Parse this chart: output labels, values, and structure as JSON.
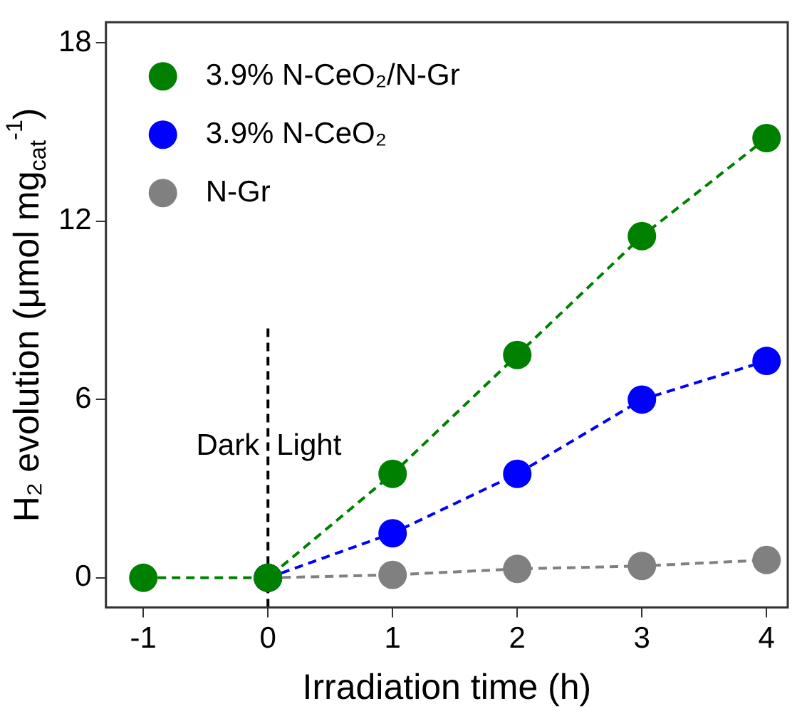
{
  "chart_data": {
    "type": "line",
    "xlabel": "Irradiation time (h)",
    "ylabel": "H₂ evolution (μmol mg$_{cat}$$^{-1}$)",
    "x": [
      -1,
      0,
      1,
      2,
      3,
      4
    ],
    "series": [
      {
        "name": "3.9% N-CeO₂/N-Gr",
        "color": "#008000",
        "values": [
          0,
          0,
          3.5,
          7.5,
          11.5,
          14.8
        ]
      },
      {
        "name": "3.9% N-CeO₂",
        "color": "#0000ff",
        "values": [
          null,
          0,
          1.5,
          3.5,
          6.0,
          7.3
        ]
      },
      {
        "name": "N-Gr",
        "color": "#808080",
        "values": [
          null,
          0,
          0.1,
          0.3,
          0.4,
          0.6
        ]
      }
    ],
    "xlim": [
      -1.3,
      4.17
    ],
    "xticks": [
      -1,
      0,
      1,
      2,
      3,
      4
    ],
    "ylim": [
      -1,
      18.7
    ],
    "yticks": [
      0,
      6,
      12,
      18
    ],
    "ref_lines": [
      {
        "axis": "x",
        "value": 0,
        "color": "#000000",
        "line_style": "dashed"
      }
    ],
    "annotations": [
      "Dark",
      "Light"
    ],
    "grid": false,
    "legend": "top left",
    "marker": "circle",
    "line_style": "dashed"
  }
}
